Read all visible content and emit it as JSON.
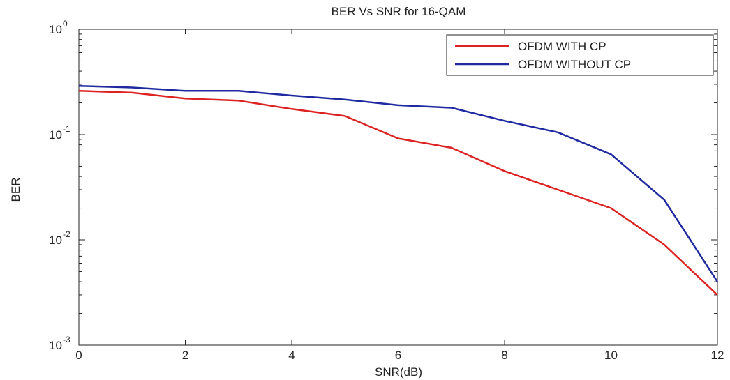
{
  "chart_data": {
    "type": "line",
    "title": "BER Vs SNR for 16-QAM",
    "xlabel": "SNR(dB)",
    "ylabel": "BER",
    "xlim": [
      0,
      12
    ],
    "ylim": [
      0.001,
      1
    ],
    "yscale": "log",
    "grid": false,
    "legend_position": "top-right",
    "x_ticks": [
      "0",
      "2",
      "4",
      "6",
      "8",
      "10",
      "12"
    ],
    "y_ticks": [
      {
        "base": "10",
        "exp": "0"
      },
      {
        "base": "10",
        "exp": "-1"
      },
      {
        "base": "10",
        "exp": "-2"
      },
      {
        "base": "10",
        "exp": "-3"
      }
    ],
    "x": [
      0,
      1,
      2,
      3,
      4,
      5,
      6,
      7,
      8,
      9,
      10,
      11,
      12
    ],
    "series": [
      {
        "name": "OFDM WITH CP",
        "color": "#dd2222",
        "values": [
          0.26,
          0.25,
          0.22,
          0.21,
          0.175,
          0.15,
          0.092,
          0.075,
          0.045,
          0.03,
          0.02,
          0.009,
          0.003
        ]
      },
      {
        "name": "OFDM WITHOUT CP",
        "color": "#1f2aa0",
        "values": [
          0.29,
          0.28,
          0.26,
          0.26,
          0.235,
          0.215,
          0.19,
          0.18,
          0.135,
          0.105,
          0.065,
          0.024,
          0.004
        ]
      }
    ]
  }
}
